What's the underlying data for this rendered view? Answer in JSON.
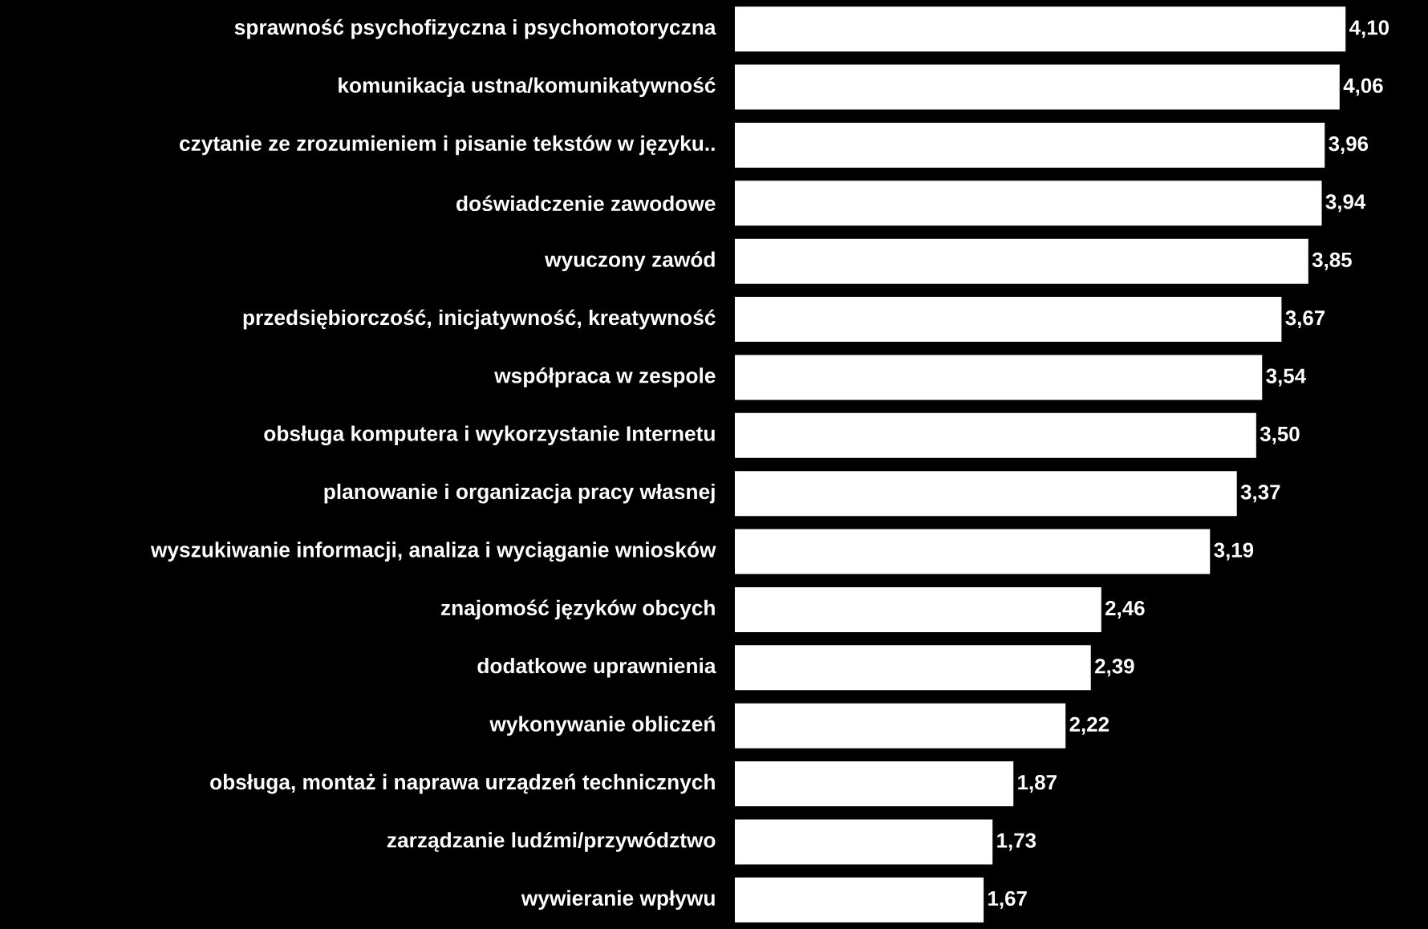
{
  "chart_data": {
    "type": "bar",
    "orientation": "horizontal",
    "color": "#ffffff",
    "categories": [
      "sprawność psychofizyczna i psychomotoryczna",
      "komunikacja ustna/komunikatywność",
      "czytanie ze zrozumieniem i pisanie tekstów w języku..",
      "doświadczenie zawodowe",
      "wyuczony zawód",
      "przedsiębiorczość, inicjatywność, kreatywność",
      "współpraca w zespole",
      "obsługa komputera i wykorzystanie Internetu",
      "planowanie i organizacja pracy własnej",
      "wyszukiwanie informacji, analiza i wyciąganie wniosków",
      "znajomość języków obcych",
      "dodatkowe uprawnienia",
      "wykonywanie obliczeń",
      "obsługa, montaż i naprawa urządzeń technicznych",
      "zarządzanie ludźmi/przywództwo",
      "wywieranie wpływu"
    ],
    "values": [
      4.1,
      4.06,
      3.96,
      3.94,
      3.85,
      3.67,
      3.54,
      3.5,
      3.37,
      3.19,
      2.46,
      2.39,
      2.22,
      1.87,
      1.73,
      1.67
    ],
    "value_labels": [
      "4,10",
      "4,06",
      "3,96",
      "3,94",
      "3,85",
      "3,67",
      "3,54",
      "3,50",
      "3,37",
      "3,19",
      "2,46",
      "2,39",
      "2,22",
      "1,87",
      "1,73",
      "1,67"
    ]
  }
}
